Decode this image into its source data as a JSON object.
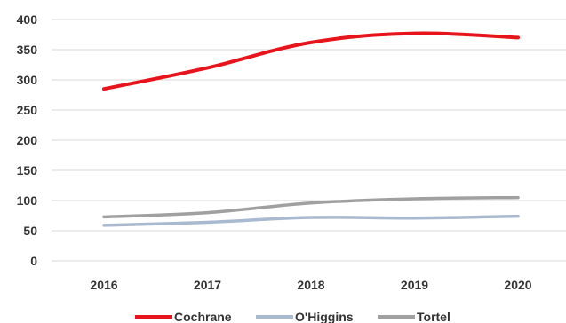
{
  "chart_data": {
    "type": "line",
    "title": "",
    "xlabel": "",
    "ylabel": "",
    "x": [
      "2016",
      "2017",
      "2018",
      "2019",
      "2020"
    ],
    "ylim": [
      0,
      400
    ],
    "yticks": [
      0,
      50,
      100,
      150,
      200,
      250,
      300,
      350,
      400
    ],
    "grid": true,
    "legend_position": "bottom",
    "series": [
      {
        "name": "Cochrane",
        "color": "#e8141c",
        "values": [
          285,
          320,
          362,
          377,
          370
        ]
      },
      {
        "name": "O'Higgins",
        "color": "#a9b9cf",
        "values": [
          59,
          64,
          72,
          71,
          74
        ]
      },
      {
        "name": "Tortel",
        "color": "#a0a0a0",
        "values": [
          73,
          80,
          96,
          103,
          105
        ]
      }
    ]
  }
}
